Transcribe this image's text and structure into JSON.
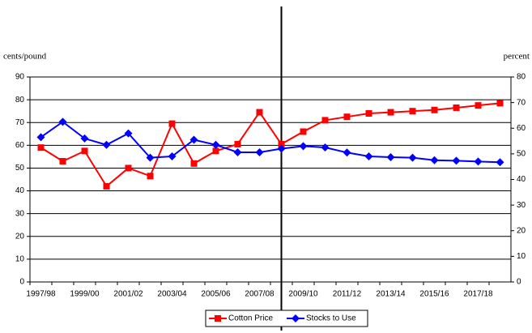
{
  "chart_data": {
    "type": "line",
    "y_label": "cents/pound",
    "y2_label": "percent",
    "categories": [
      "1997/98",
      null,
      "1999/00",
      null,
      "2001/02",
      null,
      "2003/04",
      null,
      "2005/06",
      null,
      "2007/08",
      null,
      "2009/10",
      null,
      "2011/12",
      null,
      "2013/14",
      null,
      "2015/16",
      null,
      "2017/18",
      null
    ],
    "series": [
      {
        "name": "Cotton Price",
        "color": "#ff0000",
        "marker": "square",
        "axis": "y",
        "values": [
          59,
          53,
          57.5,
          42,
          50,
          46.5,
          69.5,
          52,
          57.5,
          60.5,
          74.5,
          60.5,
          66,
          71,
          72.5,
          74,
          74.5,
          75,
          75.5,
          76.5,
          77.5,
          78.5
        ]
      },
      {
        "name": "Stocks to Use",
        "color": "#0000ff",
        "marker": "diamond",
        "axis": "y2",
        "values": [
          56.5,
          62.5,
          56,
          53.5,
          58,
          48.5,
          49,
          55.5,
          53.5,
          50.6,
          50.6,
          52,
          53,
          52.5,
          50.5,
          49,
          48.7,
          48.5,
          47.5,
          47.3,
          47,
          46.7
        ]
      }
    ],
    "ylim": [
      0,
      90
    ],
    "yticks": [
      0,
      10,
      20,
      30,
      40,
      50,
      60,
      70,
      80,
      90
    ],
    "y2lim": [
      0,
      80
    ],
    "y2ticks": [
      0,
      10,
      20,
      30,
      40,
      50,
      60,
      70,
      80
    ],
    "grid": true,
    "legend": "bottom"
  }
}
